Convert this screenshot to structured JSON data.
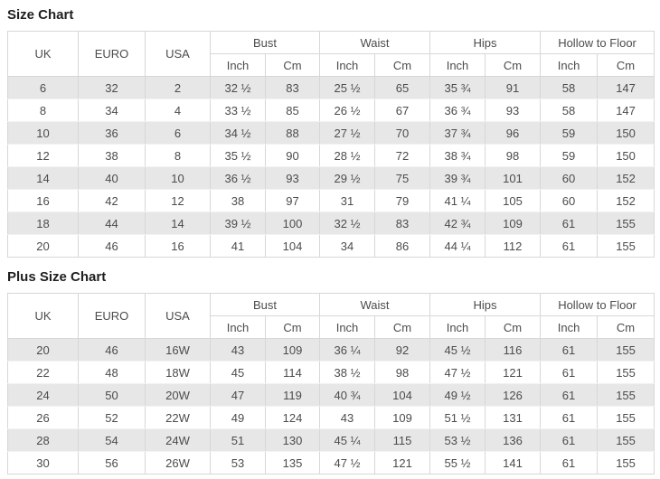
{
  "colors": {
    "stripe_row": "#e7e7e7",
    "table_border": "#d7d7d7",
    "cell_text": "#4c4c4c",
    "title_text": "#1f1f1f"
  },
  "tables": [
    {
      "title": "Size Chart",
      "size_columns": [
        "UK",
        "EURO",
        "USA"
      ],
      "measure_groups": [
        "Bust",
        "Waist",
        "Hips",
        "Hollow to Floor"
      ],
      "unit_labels": [
        "Inch",
        "Cm"
      ],
      "rows": [
        [
          "6",
          "32",
          "2",
          "32 ½",
          "83",
          "25 ½",
          "65",
          "35 ¾",
          "91",
          "58",
          "147"
        ],
        [
          "8",
          "34",
          "4",
          "33 ½",
          "85",
          "26 ½",
          "67",
          "36 ¾",
          "93",
          "58",
          "147"
        ],
        [
          "10",
          "36",
          "6",
          "34 ½",
          "88",
          "27 ½",
          "70",
          "37 ¾",
          "96",
          "59",
          "150"
        ],
        [
          "12",
          "38",
          "8",
          "35 ½",
          "90",
          "28 ½",
          "72",
          "38 ¾",
          "98",
          "59",
          "150"
        ],
        [
          "14",
          "40",
          "10",
          "36 ½",
          "93",
          "29 ½",
          "75",
          "39 ¾",
          "101",
          "60",
          "152"
        ],
        [
          "16",
          "42",
          "12",
          "38",
          "97",
          "31",
          "79",
          "41 ¼",
          "105",
          "60",
          "152"
        ],
        [
          "18",
          "44",
          "14",
          "39 ½",
          "100",
          "32 ½",
          "83",
          "42 ¾",
          "109",
          "61",
          "155"
        ],
        [
          "20",
          "46",
          "16",
          "41",
          "104",
          "34",
          "86",
          "44 ¼",
          "112",
          "61",
          "155"
        ]
      ]
    },
    {
      "title": "Plus Size Chart",
      "size_columns": [
        "UK",
        "EURO",
        "USA"
      ],
      "measure_groups": [
        "Bust",
        "Waist",
        "Hips",
        "Hollow to Floor"
      ],
      "unit_labels": [
        "Inch",
        "Cm"
      ],
      "rows": [
        [
          "20",
          "46",
          "16W",
          "43",
          "109",
          "36 ¼",
          "92",
          "45 ½",
          "116",
          "61",
          "155"
        ],
        [
          "22",
          "48",
          "18W",
          "45",
          "114",
          "38 ½",
          "98",
          "47 ½",
          "121",
          "61",
          "155"
        ],
        [
          "24",
          "50",
          "20W",
          "47",
          "119",
          "40 ¾",
          "104",
          "49 ½",
          "126",
          "61",
          "155"
        ],
        [
          "26",
          "52",
          "22W",
          "49",
          "124",
          "43",
          "109",
          "51 ½",
          "131",
          "61",
          "155"
        ],
        [
          "28",
          "54",
          "24W",
          "51",
          "130",
          "45 ¼",
          "115",
          "53 ½",
          "136",
          "61",
          "155"
        ],
        [
          "30",
          "56",
          "26W",
          "53",
          "135",
          "47 ½",
          "121",
          "55 ½",
          "141",
          "61",
          "155"
        ]
      ]
    }
  ]
}
